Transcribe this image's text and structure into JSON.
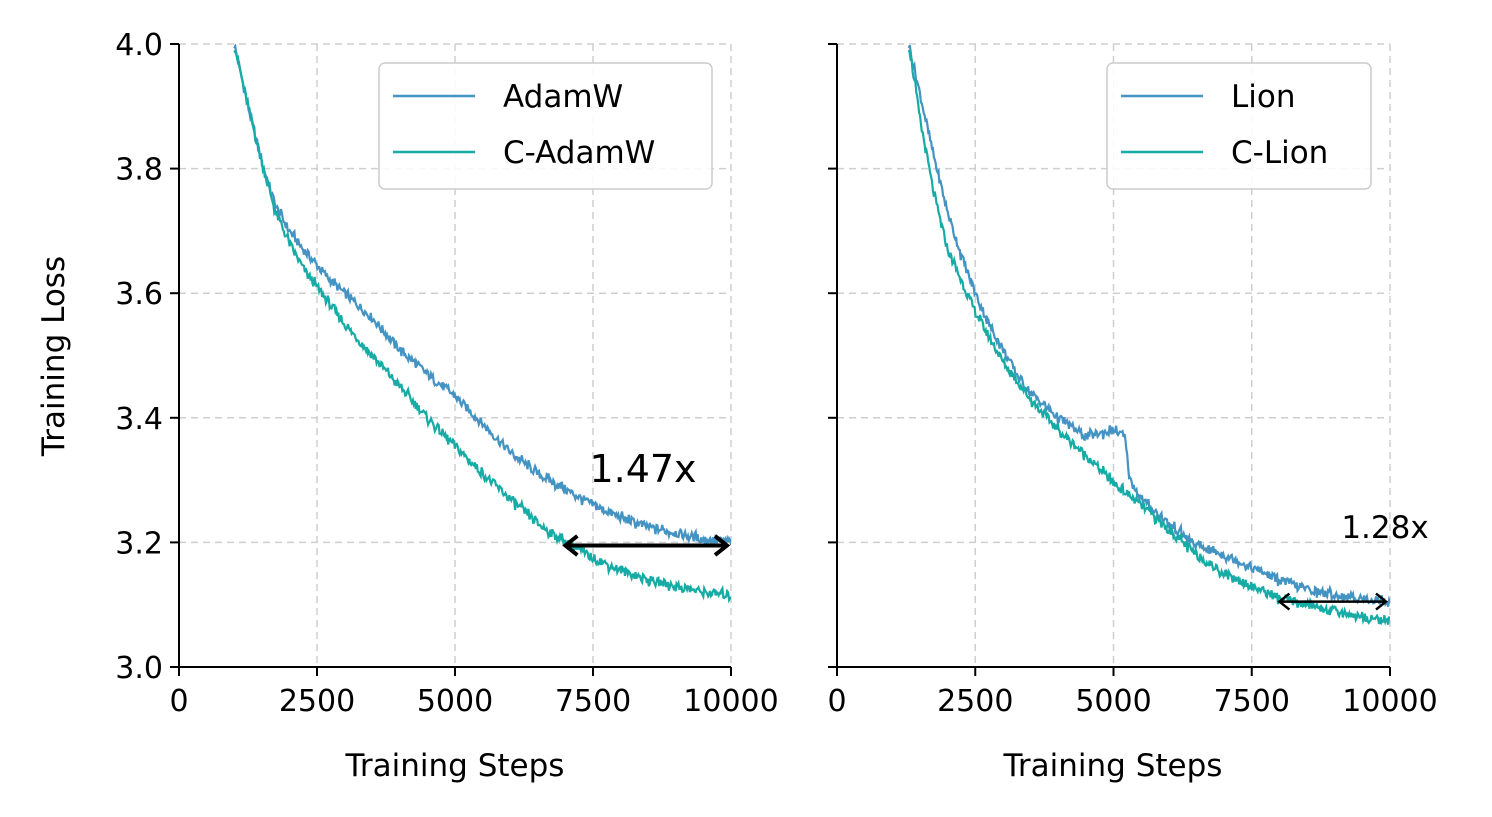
{
  "chart_data": [
    {
      "type": "line",
      "xlabel": "Training Steps",
      "ylabel": "Training Loss",
      "xlim": [
        0,
        10000
      ],
      "ylim": [
        3.0,
        4.0
      ],
      "xticks": [
        "0",
        "2500",
        "5000",
        "7500",
        "10000"
      ],
      "yticks": [
        "3.0",
        "3.2",
        "3.4",
        "3.6",
        "3.8",
        "4.0"
      ],
      "grid": true,
      "legend_position": "top-right",
      "series": [
        {
          "name": "AdamW",
          "color": "#4393c3",
          "x": [
            1000,
            1250,
            1500,
            1750,
            2000,
            2250,
            2500,
            2750,
            3000,
            3500,
            4000,
            4500,
            5000,
            5500,
            6000,
            6500,
            7000,
            7500,
            8000,
            8500,
            9000,
            9500,
            10000
          ],
          "y": [
            4.0,
            3.9,
            3.81,
            3.74,
            3.7,
            3.67,
            3.645,
            3.62,
            3.6,
            3.56,
            3.51,
            3.47,
            3.435,
            3.39,
            3.345,
            3.31,
            3.285,
            3.26,
            3.24,
            3.225,
            3.215,
            3.205,
            3.2
          ]
        },
        {
          "name": "C-AdamW",
          "color": "#16aba5",
          "x": [
            1000,
            1250,
            1500,
            1750,
            2000,
            2250,
            2500,
            2750,
            3000,
            3500,
            4000,
            4500,
            5000,
            5500,
            6000,
            6500,
            7000,
            7500,
            8000,
            8500,
            9000,
            9500,
            10000
          ],
          "y": [
            4.0,
            3.9,
            3.81,
            3.73,
            3.68,
            3.64,
            3.61,
            3.58,
            3.55,
            3.5,
            3.45,
            3.4,
            3.355,
            3.31,
            3.27,
            3.23,
            3.2,
            3.175,
            3.155,
            3.14,
            3.13,
            3.12,
            3.115
          ]
        }
      ],
      "annotation": {
        "text": "1.47x",
        "x_from": 7000,
        "x_to": 10000,
        "y": 3.195
      }
    },
    {
      "type": "line",
      "xlabel": "Training Steps",
      "ylabel": "",
      "xlim": [
        0,
        10000
      ],
      "ylim": [
        3.0,
        4.0
      ],
      "xticks": [
        "0",
        "2500",
        "5000",
        "7500",
        "10000"
      ],
      "yticks": [
        "3.0",
        "3.2",
        "3.4",
        "3.6",
        "3.8",
        "4.0"
      ],
      "grid": true,
      "legend_position": "top-right",
      "series": [
        {
          "name": "Lion",
          "color": "#4393c3",
          "x": [
            1300,
            1500,
            1750,
            2000,
            2250,
            2500,
            2750,
            3000,
            3250,
            3500,
            4000,
            4500,
            5000,
            5200,
            5300,
            5500,
            6000,
            6500,
            7000,
            7500,
            8000,
            8500,
            9000,
            9500,
            10000
          ],
          "y": [
            4.0,
            3.92,
            3.82,
            3.73,
            3.66,
            3.6,
            3.55,
            3.51,
            3.47,
            3.44,
            3.4,
            3.37,
            3.38,
            3.37,
            3.3,
            3.27,
            3.23,
            3.195,
            3.18,
            3.16,
            3.14,
            3.125,
            3.115,
            3.11,
            3.105
          ]
        },
        {
          "name": "C-Lion",
          "color": "#16aba5",
          "x": [
            1300,
            1500,
            1750,
            2000,
            2250,
            2500,
            2750,
            3000,
            3250,
            3500,
            4000,
            4500,
            5000,
            5500,
            6000,
            6500,
            7000,
            7500,
            8000,
            8500,
            9000,
            9500,
            10000
          ],
          "y": [
            4.0,
            3.88,
            3.76,
            3.67,
            3.62,
            3.57,
            3.53,
            3.49,
            3.46,
            3.43,
            3.38,
            3.34,
            3.295,
            3.26,
            3.22,
            3.18,
            3.15,
            3.13,
            3.11,
            3.1,
            3.09,
            3.08,
            3.075
          ]
        }
      ],
      "annotation": {
        "text": "1.28x",
        "x_from": 8000,
        "x_to": 10000,
        "y": 3.105
      }
    }
  ]
}
